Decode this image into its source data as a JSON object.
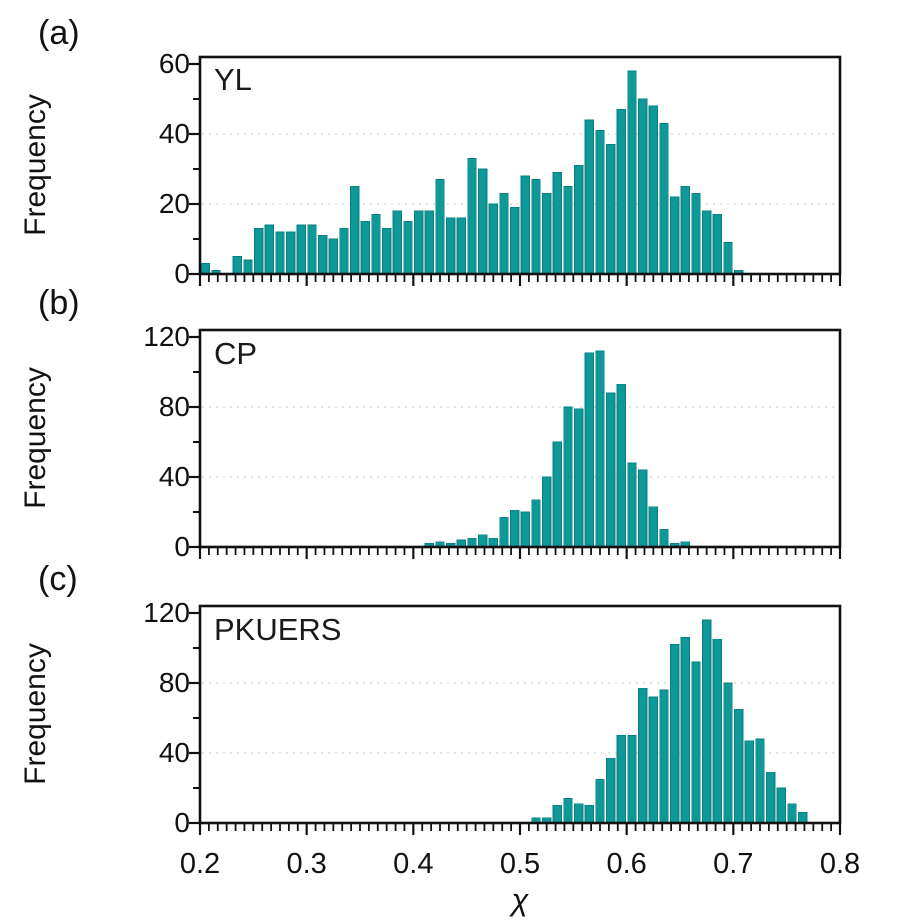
{
  "figure": {
    "xlabel": "χ",
    "xtick_labels": [
      "0.2",
      "0.3",
      "0.4",
      "0.5",
      "0.6",
      "0.7",
      "0.8"
    ],
    "xrange": [
      0.2,
      0.8
    ]
  },
  "style": {
    "bar_color": "#0E9898",
    "bar_edge_color": "#0A7F7F",
    "grid_color": "#DBDBDB",
    "axis_color": "#111111"
  },
  "chart_data": [
    {
      "type": "bar",
      "panel_letter": "(a)",
      "title": "YL",
      "ylabel": "Frequency",
      "xlabel": "χ",
      "xlim": [
        0.2,
        0.8
      ],
      "ylim": [
        0,
        62
      ],
      "yticks": [
        0,
        20,
        40,
        60
      ],
      "yticks_minor": [
        10,
        30,
        50
      ],
      "grid_y": [
        20,
        40
      ],
      "grid": "dotted",
      "legend": "none",
      "bin_start": 0.2,
      "bin_width": 0.01,
      "values": [
        3,
        1,
        0,
        5,
        4,
        13,
        14,
        12,
        12,
        14,
        14,
        11,
        10,
        13,
        25,
        15,
        17,
        13,
        18,
        15,
        18,
        18,
        27,
        16,
        16,
        33,
        30,
        20,
        23,
        19,
        28,
        27,
        23,
        29,
        25,
        31,
        44,
        41,
        37,
        47,
        58,
        50,
        48,
        43,
        22,
        25,
        23,
        18,
        17,
        9,
        1
      ]
    },
    {
      "type": "bar",
      "panel_letter": "(b)",
      "title": "CP",
      "ylabel": "Frequency",
      "xlabel": "χ",
      "xlim": [
        0.2,
        0.8
      ],
      "ylim": [
        0,
        124
      ],
      "yticks": [
        0,
        40,
        80,
        120
      ],
      "yticks_minor": [
        20,
        60,
        100
      ],
      "grid_y": [
        40,
        80
      ],
      "grid": "dotted",
      "legend": "none",
      "bin_start": 0.41,
      "bin_width": 0.01,
      "values": [
        2,
        3,
        2,
        4,
        5,
        7,
        5,
        17,
        21,
        20,
        27,
        40,
        60,
        80,
        79,
        111,
        112,
        88,
        93,
        48,
        44,
        23,
        10,
        2,
        3
      ]
    },
    {
      "type": "bar",
      "panel_letter": "(c)",
      "title": "PKUERS",
      "ylabel": "Frequency",
      "xlabel": "χ",
      "xlim": [
        0.2,
        0.8
      ],
      "ylim": [
        0,
        124
      ],
      "yticks": [
        0,
        40,
        80,
        120
      ],
      "yticks_minor": [
        20,
        60,
        100
      ],
      "grid_y": [
        40,
        80
      ],
      "grid": "dotted",
      "legend": "none",
      "bin_start": 0.51,
      "bin_width": 0.01,
      "values": [
        3,
        3,
        10,
        14,
        11,
        10,
        25,
        37,
        50,
        50,
        77,
        72,
        76,
        102,
        106,
        92,
        116,
        105,
        80,
        65,
        47,
        48,
        29,
        20,
        11,
        6
      ]
    }
  ]
}
